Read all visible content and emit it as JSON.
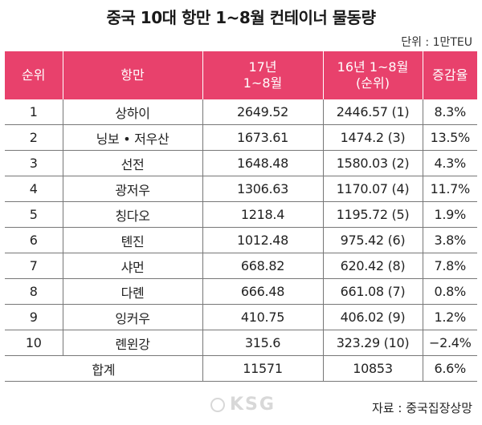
{
  "title": "중국 10대 항만 1~8월 컨테이너 물동량",
  "unit": "단위 : 1만TEU",
  "headers": {
    "rank": "순위",
    "port": "항만",
    "y17_line1": "17년",
    "y17_line2": "1~8월",
    "y16_line1": "16년 1~8월",
    "y16_line2": "(순위)",
    "growth": "증감율"
  },
  "rows": [
    {
      "rank": "1",
      "port": "상하이",
      "y17": "2649.52",
      "y16": "2446.57 (1)",
      "growth": "8.3%"
    },
    {
      "rank": "2",
      "port": "닝보 • 저우산",
      "y17": "1673.61",
      "y16": "1474.2 (3)",
      "growth": "13.5%"
    },
    {
      "rank": "3",
      "port": "선전",
      "y17": "1648.48",
      "y16": "1580.03 (2)",
      "growth": "4.3%"
    },
    {
      "rank": "4",
      "port": "광저우",
      "y17": "1306.63",
      "y16": "1170.07 (4)",
      "growth": "11.7%"
    },
    {
      "rank": "5",
      "port": "칭다오",
      "y17": "1218.4",
      "y16": "1195.72 (5)",
      "growth": "1.9%"
    },
    {
      "rank": "6",
      "port": "톈진",
      "y17": "1012.48",
      "y16": "975.42 (6)",
      "growth": "3.8%"
    },
    {
      "rank": "7",
      "port": "샤먼",
      "y17": "668.82",
      "y16": "620.42 (8)",
      "growth": "7.8%"
    },
    {
      "rank": "8",
      "port": "다롄",
      "y17": "666.48",
      "y16": "661.08 (7)",
      "growth": "0.8%"
    },
    {
      "rank": "9",
      "port": "잉커우",
      "y17": "410.75",
      "y16": "406.02 (9)",
      "growth": "1.2%"
    },
    {
      "rank": "10",
      "port": "롄윈강",
      "y17": "315.6",
      "y16": "323.29 (10)",
      "growth": "−2.4%"
    }
  ],
  "total": {
    "label": "합계",
    "y17": "11571",
    "y16": "10853",
    "growth": "6.6%"
  },
  "watermark": "KSG",
  "source": "자료 : 중국집장상망"
}
